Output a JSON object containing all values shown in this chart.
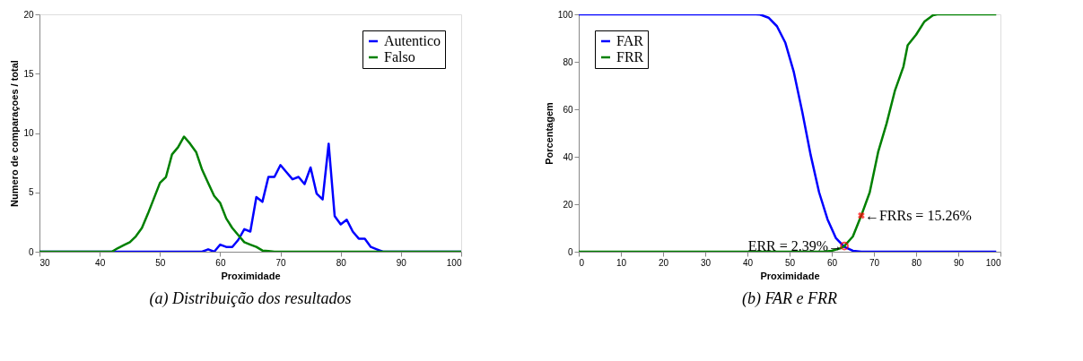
{
  "chart_data": [
    {
      "type": "line",
      "title": "(a) Distribuição dos resultados",
      "xlabel": "Proximidade",
      "ylabel": "Numero de comparaçoes / total",
      "xlim": [
        30,
        100
      ],
      "xticks": [
        30,
        40,
        50,
        60,
        70,
        80,
        90,
        100
      ],
      "ylim": [
        0,
        20
      ],
      "yticks": [
        0,
        5,
        10,
        15,
        20
      ],
      "grid": false,
      "legend": "top right",
      "series": [
        {
          "name": "Autentico",
          "color": "#0000ff",
          "x": [
            30,
            57,
            58,
            59,
            60,
            61,
            62,
            63,
            64,
            65,
            66,
            67,
            68,
            69,
            70,
            71,
            72,
            73,
            74,
            75,
            76,
            77,
            78,
            79,
            80,
            81,
            82,
            83,
            84,
            85,
            86,
            87,
            100
          ],
          "values": [
            0,
            0,
            0.2,
            0,
            0.6,
            0.4,
            0.4,
            1.0,
            1.9,
            1.7,
            4.6,
            4.2,
            6.3,
            6.3,
            7.3,
            6.7,
            6.1,
            6.3,
            5.7,
            7.1,
            4.9,
            4.4,
            9.1,
            3.0,
            2.3,
            2.7,
            1.7,
            1.1,
            1.1,
            0.4,
            0.2,
            0,
            0
          ]
        },
        {
          "name": "Falso",
          "color": "#008000",
          "x": [
            30,
            42,
            43,
            44,
            45,
            46,
            47,
            48,
            49,
            50,
            51,
            52,
            53,
            54,
            55,
            56,
            57,
            58,
            59,
            60,
            61,
            62,
            63,
            64,
            65,
            66,
            67,
            68,
            69,
            100
          ],
          "values": [
            0,
            0,
            0.3,
            0.55,
            0.8,
            1.3,
            2.0,
            3.2,
            4.5,
            5.8,
            6.3,
            8.2,
            8.8,
            9.7,
            9.1,
            8.4,
            6.9,
            5.8,
            4.7,
            4.1,
            2.8,
            2.0,
            1.4,
            0.8,
            0.6,
            0.4,
            0.1,
            0.05,
            0,
            0
          ]
        }
      ]
    },
    {
      "type": "line",
      "title": "(b) FAR e FRR",
      "xlabel": "Proximidade",
      "ylabel": "Porcentagem",
      "xlim": [
        0,
        100
      ],
      "xticks": [
        0,
        10,
        20,
        30,
        40,
        50,
        60,
        70,
        80,
        90,
        100
      ],
      "ylim": [
        0,
        100
      ],
      "yticks": [
        0,
        20,
        40,
        60,
        80,
        100
      ],
      "grid": false,
      "legend": "top left",
      "series": [
        {
          "name": "FAR",
          "color": "#0000ff",
          "x": [
            0,
            42,
            43,
            45,
            47,
            49,
            51,
            53,
            55,
            57,
            59,
            61,
            63,
            65,
            67,
            99
          ],
          "values": [
            100,
            100,
            99.9,
            98.6,
            95,
            88,
            75.7,
            59,
            40.7,
            25,
            13.6,
            5.7,
            2.0,
            0.4,
            0,
            0
          ]
        },
        {
          "name": "FRR",
          "color": "#008000",
          "x": [
            0,
            58,
            60,
            62,
            63,
            65,
            67,
            69,
            71,
            73,
            75,
            77,
            78,
            80,
            82,
            84,
            85,
            99
          ],
          "values": [
            0,
            0,
            0.4,
            1.4,
            2.39,
            6.4,
            15.26,
            25,
            42,
            54,
            68,
            78,
            87,
            91.4,
            97,
            99.6,
            100,
            100
          ]
        },
        {
          "type": "scatter",
          "color": "#ff0000",
          "marker": "circle",
          "x": [
            63
          ],
          "values": [
            2.39
          ]
        },
        {
          "type": "scatter",
          "color": "#ff0000",
          "marker": "cross",
          "x": [
            67
          ],
          "values": [
            15.26
          ]
        }
      ],
      "annotations": [
        {
          "text": "ERR = 2.39%→",
          "x": 63,
          "y": 2.39
        },
        {
          "text": "←FRRs = 15.26%",
          "x": 67,
          "y": 15.26
        }
      ]
    }
  ]
}
